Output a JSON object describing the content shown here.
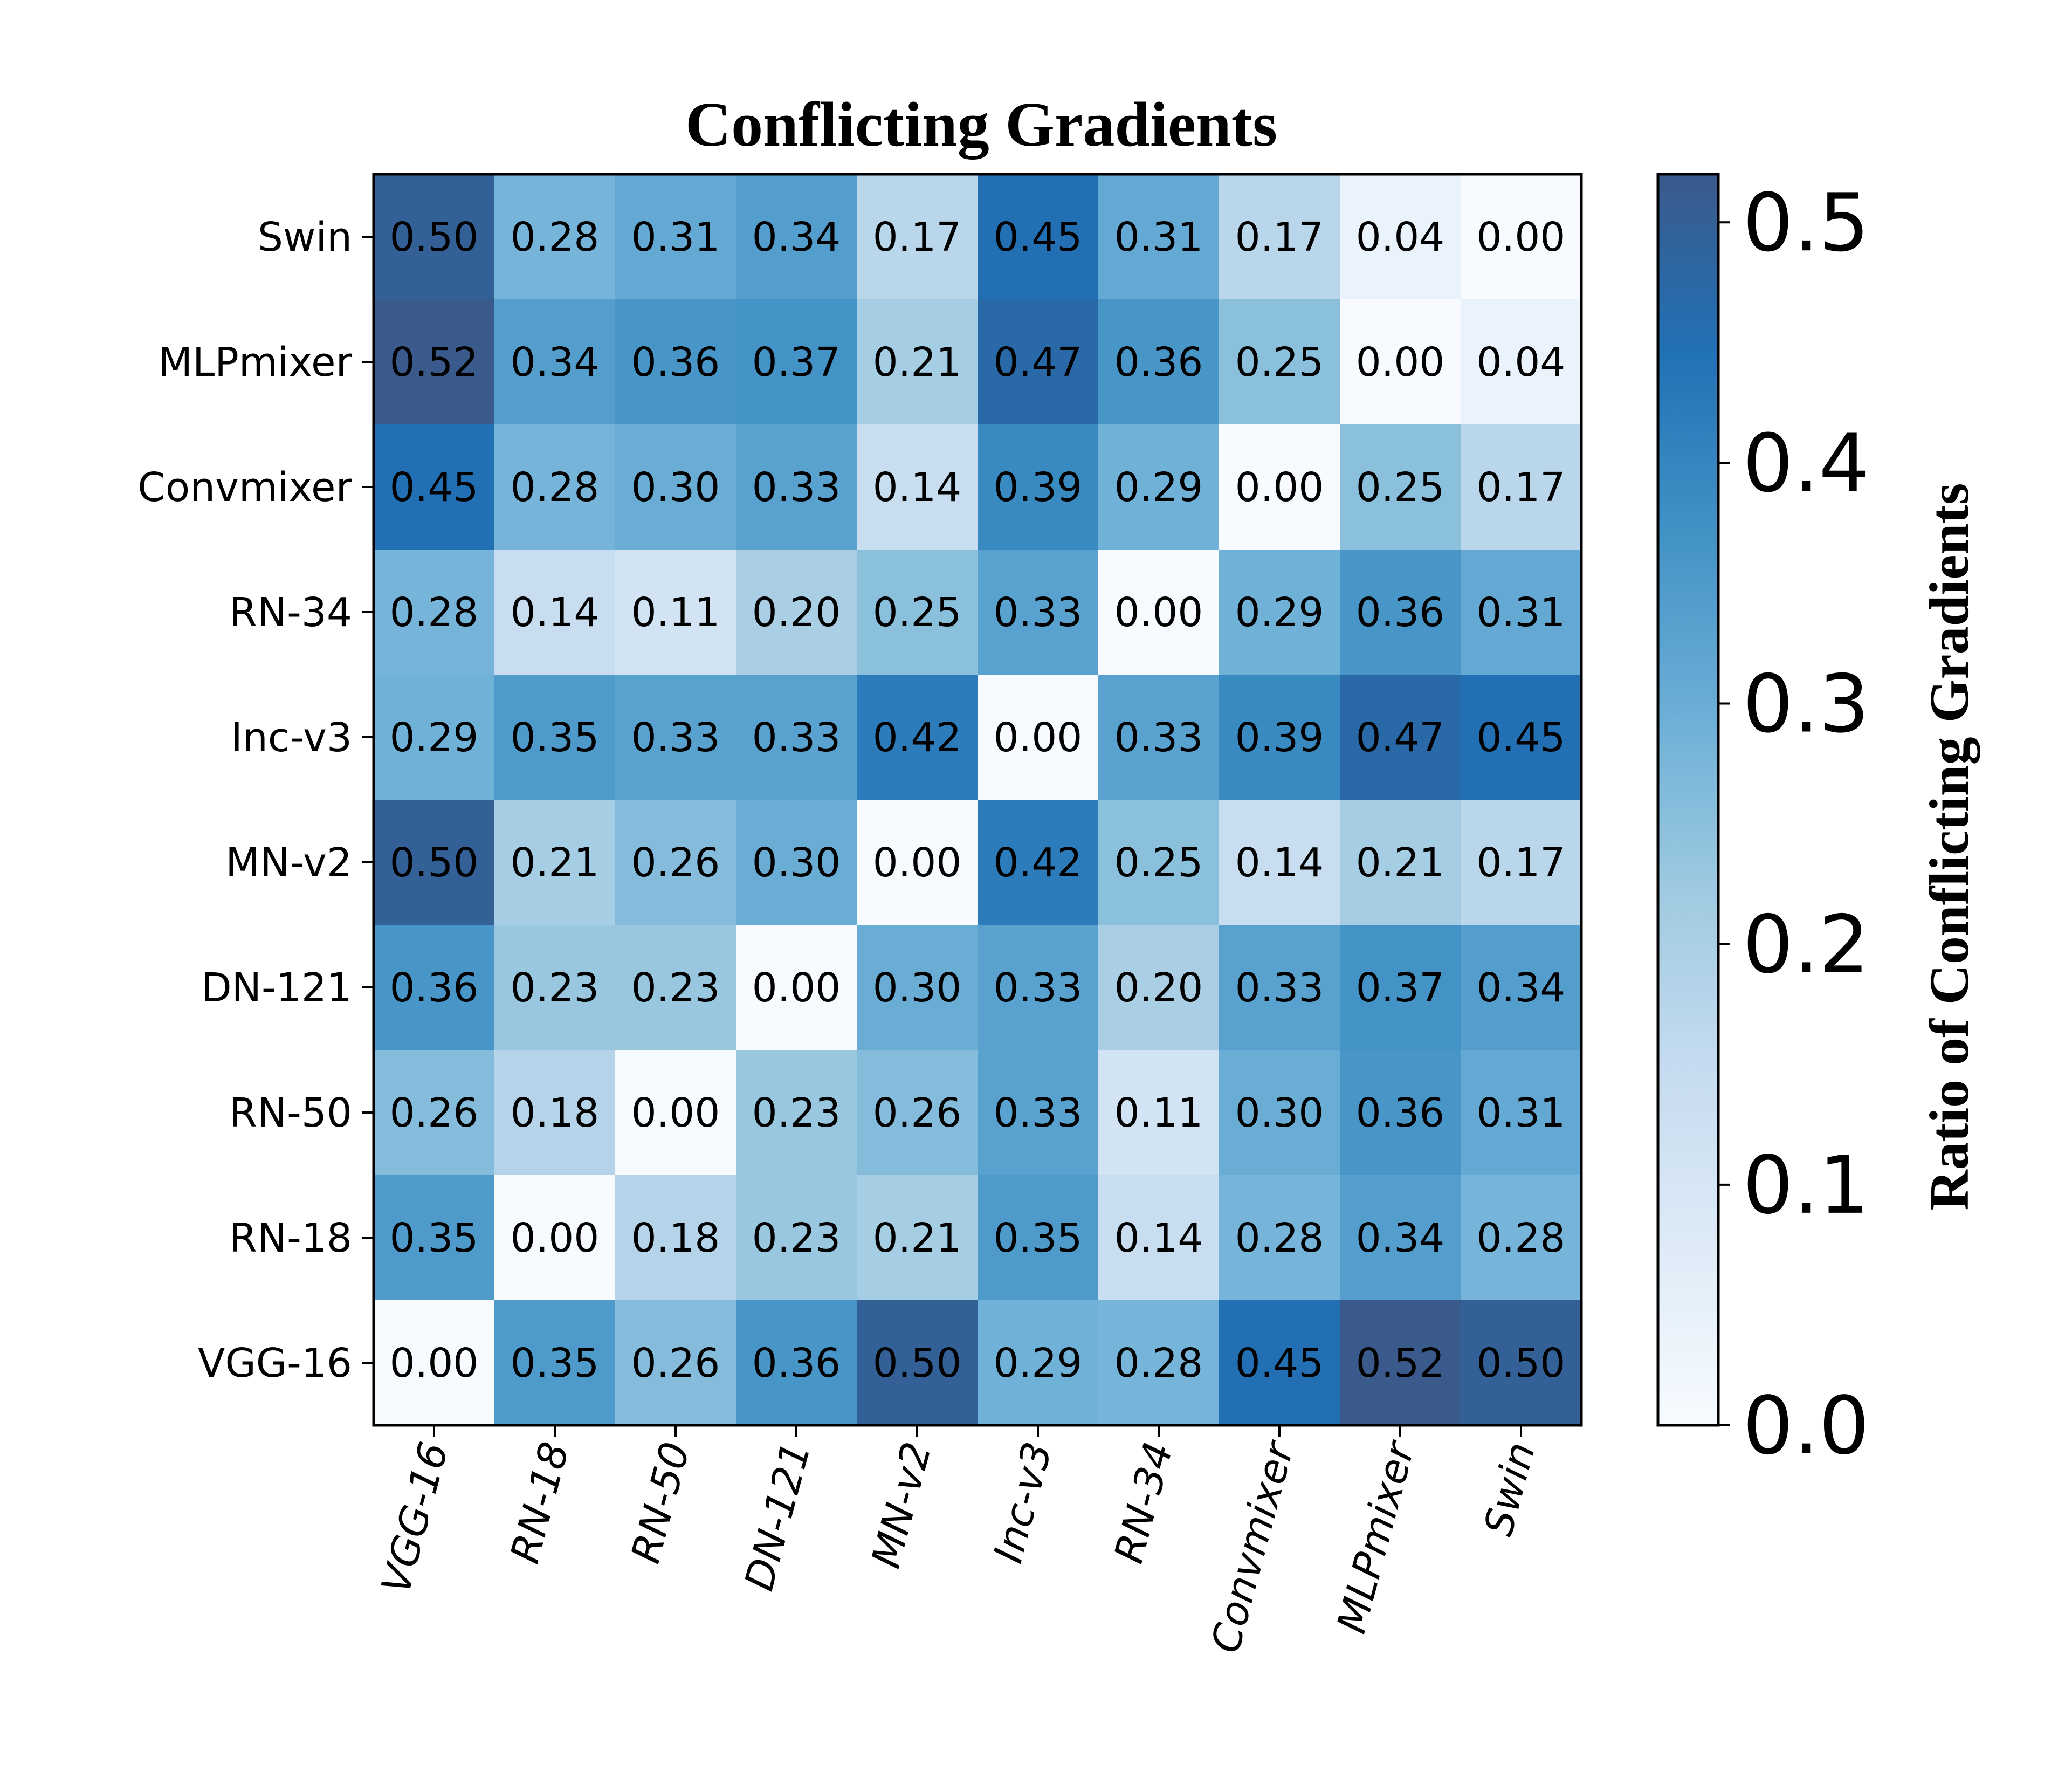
{
  "chart_data": {
    "type": "heatmap",
    "title": "Conflicting Gradients",
    "colorbar_label": "Ratio of Conflicting Gradients",
    "colorbar_range": [
      0.0,
      0.52
    ],
    "colorbar_ticks": [
      "0.0",
      "0.1",
      "0.2",
      "0.3",
      "0.4",
      "0.5"
    ],
    "colorbar_tick_values": [
      0.0,
      0.1,
      0.2,
      0.3,
      0.4,
      0.5
    ],
    "colormap": [
      "#f7fbff",
      "#deebf7",
      "#c6dbef",
      "#9ecae1",
      "#6baed6",
      "#4292c6",
      "#2171b5",
      "#3a5a8c"
    ],
    "x_labels": [
      "VGG-16",
      "RN-18",
      "RN-50",
      "DN-121",
      "MN-v2",
      "Inc-v3",
      "RN-34",
      "Convmixer",
      "MLPmixer",
      "Swin"
    ],
    "y_labels": [
      "Swin",
      "MLPmixer",
      "Convmixer",
      "RN-34",
      "Inc-v3",
      "MN-v2",
      "DN-121",
      "RN-50",
      "RN-18",
      "VGG-16"
    ],
    "values": [
      [
        0.5,
        0.28,
        0.31,
        0.34,
        0.17,
        0.45,
        0.31,
        0.17,
        0.04,
        0.0
      ],
      [
        0.52,
        0.34,
        0.36,
        0.37,
        0.21,
        0.47,
        0.36,
        0.25,
        0.0,
        0.04
      ],
      [
        0.45,
        0.28,
        0.3,
        0.33,
        0.14,
        0.39,
        0.29,
        0.0,
        0.25,
        0.17
      ],
      [
        0.28,
        0.14,
        0.11,
        0.2,
        0.25,
        0.33,
        0.0,
        0.29,
        0.36,
        0.31
      ],
      [
        0.29,
        0.35,
        0.33,
        0.33,
        0.42,
        0.0,
        0.33,
        0.39,
        0.47,
        0.45
      ],
      [
        0.5,
        0.21,
        0.26,
        0.3,
        0.0,
        0.42,
        0.25,
        0.14,
        0.21,
        0.17
      ],
      [
        0.36,
        0.23,
        0.23,
        0.0,
        0.3,
        0.33,
        0.2,
        0.33,
        0.37,
        0.34
      ],
      [
        0.26,
        0.18,
        0.0,
        0.23,
        0.26,
        0.33,
        0.11,
        0.3,
        0.36,
        0.31
      ],
      [
        0.35,
        0.0,
        0.18,
        0.23,
        0.21,
        0.35,
        0.14,
        0.28,
        0.34,
        0.28
      ],
      [
        0.0,
        0.35,
        0.26,
        0.36,
        0.5,
        0.29,
        0.28,
        0.45,
        0.52,
        0.5
      ]
    ],
    "value_labels": [
      [
        "0.50",
        "0.28",
        "0.31",
        "0.34",
        "0.17",
        "0.45",
        "0.31",
        "0.17",
        "0.04",
        "0.00"
      ],
      [
        "0.52",
        "0.34",
        "0.36",
        "0.37",
        "0.21",
        "0.47",
        "0.36",
        "0.25",
        "0.00",
        "0.04"
      ],
      [
        "0.45",
        "0.28",
        "0.30",
        "0.33",
        "0.14",
        "0.39",
        "0.29",
        "0.00",
        "0.25",
        "0.17"
      ],
      [
        "0.28",
        "0.14",
        "0.11",
        "0.20",
        "0.25",
        "0.33",
        "0.00",
        "0.29",
        "0.36",
        "0.31"
      ],
      [
        "0.29",
        "0.35",
        "0.33",
        "0.33",
        "0.42",
        "0.00",
        "0.33",
        "0.39",
        "0.47",
        "0.45"
      ],
      [
        "0.50",
        "0.21",
        "0.26",
        "0.30",
        "0.00",
        "0.42",
        "0.25",
        "0.14",
        "0.21",
        "0.17"
      ],
      [
        "0.36",
        "0.23",
        "0.23",
        "0.00",
        "0.30",
        "0.33",
        "0.20",
        "0.33",
        "0.37",
        "0.34"
      ],
      [
        "0.26",
        "0.18",
        "0.00",
        "0.23",
        "0.26",
        "0.33",
        "0.11",
        "0.30",
        "0.36",
        "0.31"
      ],
      [
        "0.35",
        "0.00",
        "0.18",
        "0.23",
        "0.21",
        "0.35",
        "0.14",
        "0.28",
        "0.34",
        "0.28"
      ],
      [
        "0.00",
        "0.35",
        "0.26",
        "0.36",
        "0.50",
        "0.29",
        "0.28",
        "0.45",
        "0.52",
        "0.50"
      ]
    ]
  }
}
